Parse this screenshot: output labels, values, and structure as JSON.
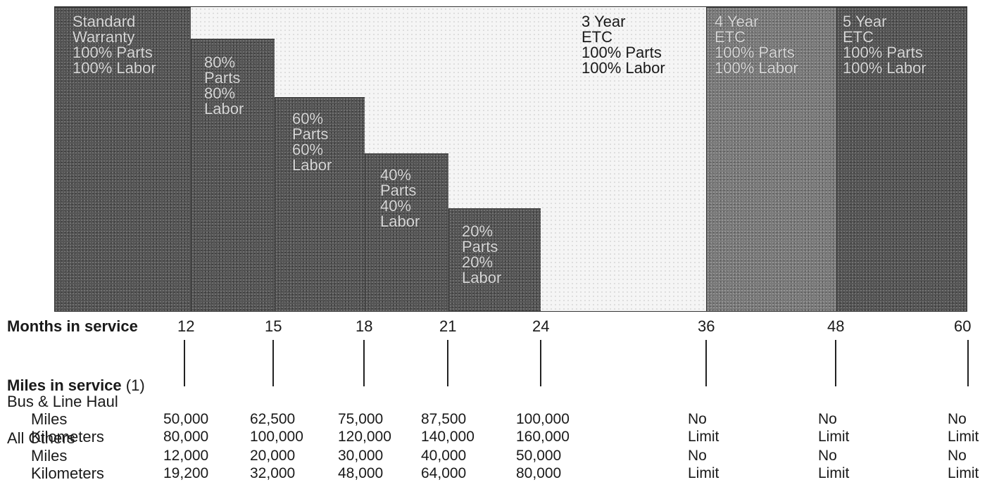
{
  "blocks": [
    {
      "id": "standard",
      "lines": [
        "Standard",
        "Warranty",
        "100% Parts",
        "100% Labor"
      ]
    },
    {
      "id": "80",
      "lines": [
        "80%",
        "Parts",
        "80%",
        "Labor"
      ]
    },
    {
      "id": "60",
      "lines": [
        "60%",
        "Parts",
        "60%",
        "Labor"
      ]
    },
    {
      "id": "40",
      "lines": [
        "40%",
        "Parts",
        "40%",
        "Labor"
      ]
    },
    {
      "id": "20",
      "lines": [
        "20%",
        "Parts",
        "20%",
        "Labor"
      ]
    },
    {
      "id": "etc3",
      "lines": [
        "3 Year",
        "ETC",
        "100% Parts",
        "100% Labor"
      ]
    },
    {
      "id": "etc4",
      "lines": [
        "4 Year",
        "ETC",
        "100% Parts",
        "100% Labor"
      ]
    },
    {
      "id": "etc5",
      "lines": [
        "5 Year",
        "ETC",
        "100% Parts",
        "100% Labor"
      ]
    }
  ],
  "months_label": "Months in service",
  "months": [
    "12",
    "15",
    "18",
    "21",
    "24",
    "36",
    "48",
    "60"
  ],
  "miles_label": "Miles in service",
  "miles_note": "(1)",
  "groups": [
    {
      "name": "Bus & Line Haul",
      "rows": [
        {
          "label": "Miles",
          "values": [
            "50,000",
            "62,500",
            "75,000",
            "87,500",
            "100,000",
            "No",
            "No",
            "No"
          ]
        },
        {
          "label": "Kilometers",
          "values": [
            "80,000",
            "100,000",
            "120,000",
            "140,000",
            "160,000",
            "Limit",
            "Limit",
            "Limit"
          ]
        }
      ]
    },
    {
      "name": "All Others",
      "rows": [
        {
          "label": "Miles",
          "values": [
            "12,000",
            "20,000",
            "30,000",
            "40,000",
            "50,000",
            "No",
            "No",
            "No"
          ]
        },
        {
          "label": "Kilometers",
          "values": [
            "19,200",
            "32,000",
            "48,000",
            "64,000",
            "80,000",
            "Limit",
            "Limit",
            "Limit"
          ]
        }
      ]
    }
  ]
}
